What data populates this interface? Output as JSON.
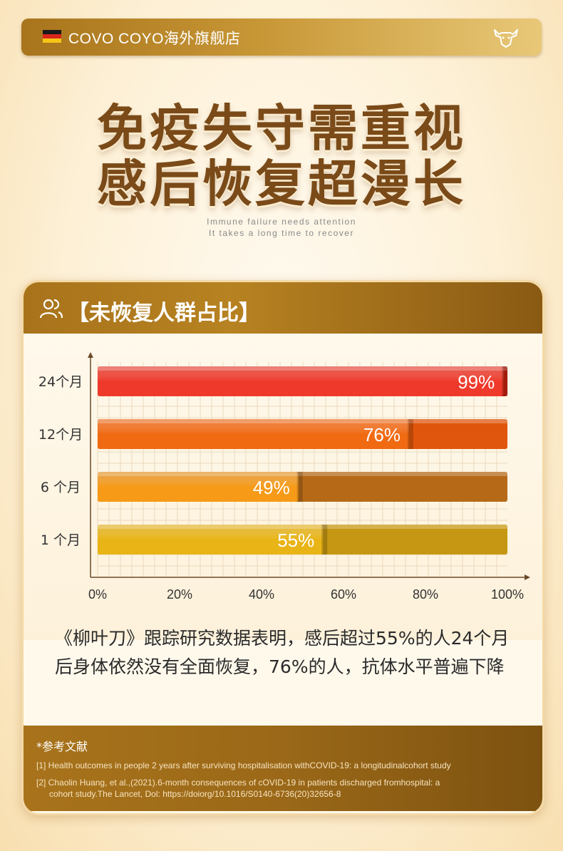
{
  "topbar": {
    "brand": "COVO COYO海外旗舰店",
    "flag_colors": [
      "#1a1a1a",
      "#d8261c",
      "#f5c518"
    ],
    "icon": "cow-head-icon"
  },
  "headline": {
    "line1": "免疫失守需重视",
    "line2": "感后恢复超漫长"
  },
  "subtitle": {
    "line1": "Immune failure needs attention",
    "line2": "It takes a long time to recover"
  },
  "card": {
    "title": "【未恢复人群占比】",
    "icon": "people-icon",
    "description": "《柳叶刀》跟踪研究数据表明，感后超过55%的人24个月后身体依然没有全面恢复，76%的人，抗体水平普遍下降"
  },
  "chart_data": {
    "type": "bar",
    "orientation": "horizontal",
    "categories": [
      "24个月",
      "12个月",
      "6 个月",
      "1 个月"
    ],
    "values": [
      99,
      76,
      49,
      55
    ],
    "value_labels": [
      "99%",
      "76%",
      "49%",
      "55%"
    ],
    "xlim": [
      0,
      100
    ],
    "xticks": [
      "0%",
      "20%",
      "40%",
      "60%",
      "80%",
      "100%"
    ],
    "grid": true,
    "colors": [
      {
        "fill": "#ef3b2c",
        "track": "#c8210f"
      },
      {
        "fill": "#f06a12",
        "track": "#e0560c"
      },
      {
        "fill": "#f59a18",
        "track": "#b66a18"
      },
      {
        "fill": "#e9b415",
        "track": "#c69712"
      }
    ]
  },
  "references": {
    "title": "*参考文献",
    "items": [
      "[1] Health outcomes in people 2 years after surviving hospitalisation withCOVID-19: a longitudinalcohort study",
      "[2] Chaolin Huang, et al.,(2021).6-month consequences of cOVID-19 in patients discharged fromhospital: a",
      "cohort study.The Lancet, Dol: https://doiorg/10.1016/S0140-6736(20)32656-8"
    ]
  }
}
